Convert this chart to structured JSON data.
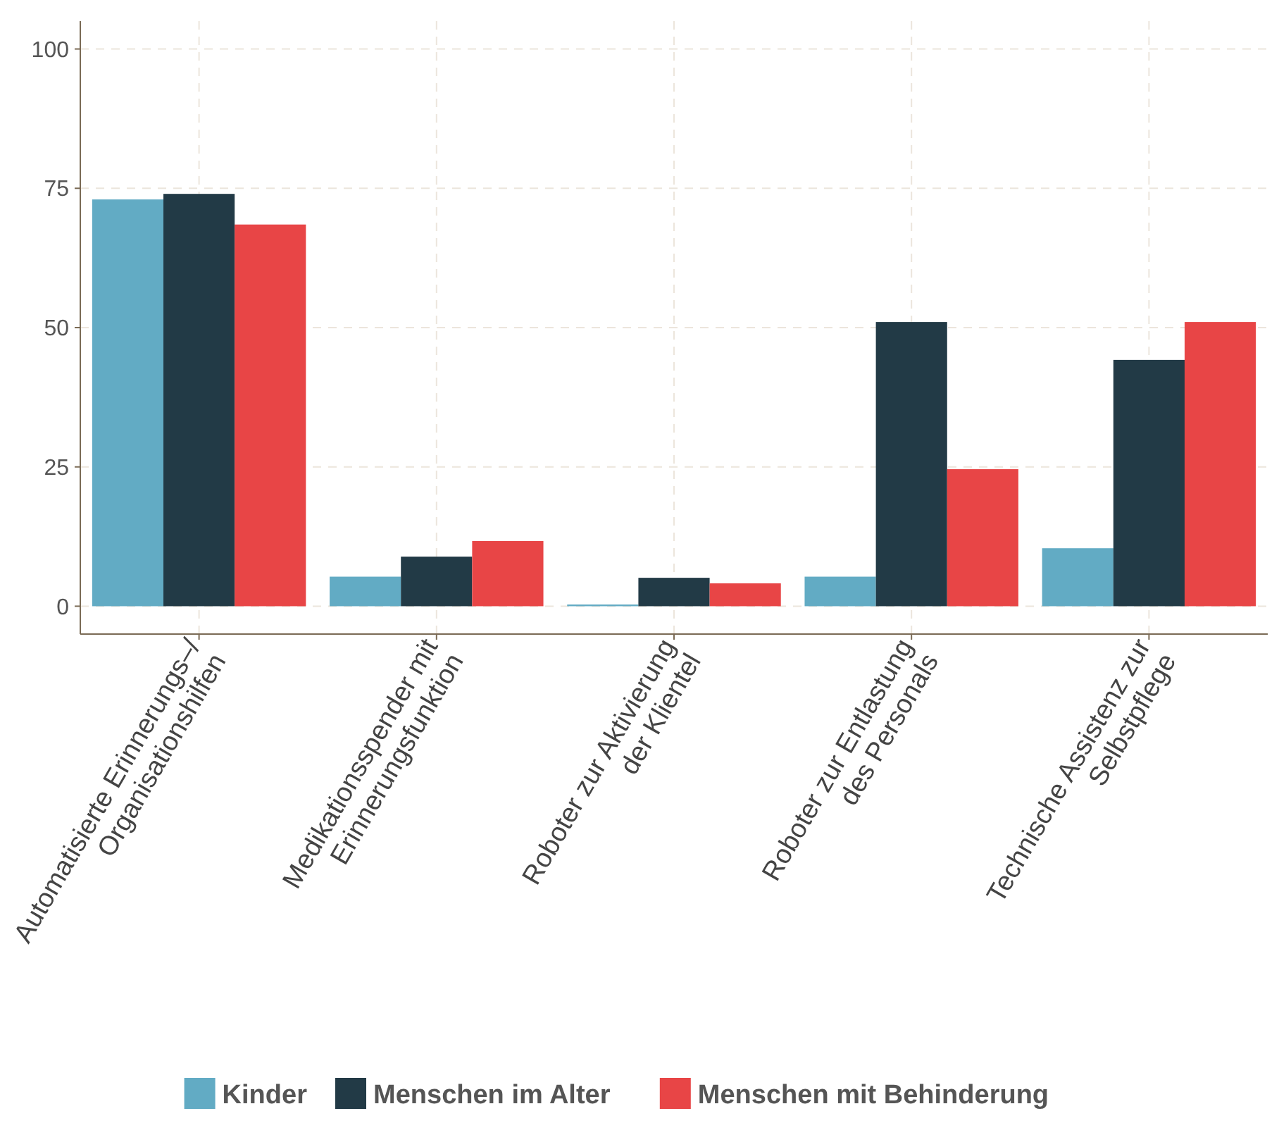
{
  "chart_data": {
    "type": "bar",
    "categories": [
      "Automatisierte Erinnerungs–/\nOrganisationshilfen",
      "Medikationsspender mit\nErinnerungsfunktion",
      "Roboter zur Aktivierung\nder Klientel",
      "Roboter zur Entlastung\ndes Personals",
      "Technische Assistenz zur\nSelbstpflege"
    ],
    "series": [
      {
        "name": "Kinder",
        "color": "#62abc4",
        "values": [
          73,
          5.3,
          0.3,
          5.3,
          10.4
        ]
      },
      {
        "name": "Menschen im Alter",
        "color": "#223a46",
        "values": [
          74,
          8.9,
          5.1,
          51,
          44.2
        ]
      },
      {
        "name": "Menschen mit Behinderung",
        "color": "#e84546",
        "values": [
          68.5,
          11.7,
          4.1,
          24.6,
          51
        ]
      }
    ],
    "ylim": [
      -5,
      105
    ],
    "yticks": [
      0,
      25,
      50,
      75,
      100
    ],
    "grid": true,
    "legend": "bottom"
  }
}
